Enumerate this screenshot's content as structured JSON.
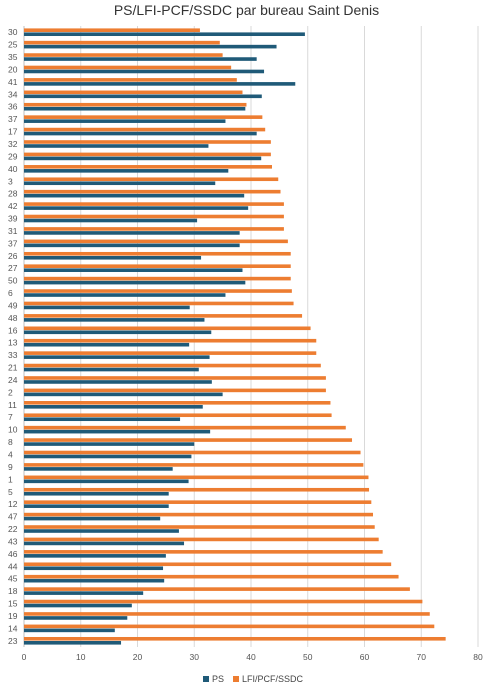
{
  "chart_data": {
    "type": "bar",
    "orientation": "horizontal",
    "title": "PS/LFI-PCF/SSDC par bureau Saint Denis",
    "xlabel": "",
    "ylabel": "",
    "xlim": [
      0,
      80
    ],
    "xticks": [
      0,
      10,
      20,
      30,
      40,
      50,
      60,
      70,
      80
    ],
    "grid": true,
    "legend_position": "bottom",
    "categories": [
      "30",
      "25",
      "35",
      "20",
      "41",
      "34",
      "36",
      "37",
      "17",
      "32",
      "29",
      "40",
      "3",
      "28",
      "42",
      "39",
      "31",
      "37",
      "26",
      "27",
      "50",
      "6",
      "49",
      "48",
      "16",
      "13",
      "33",
      "21",
      "24",
      "2",
      "11",
      "7",
      "10",
      "8",
      "4",
      "9",
      "1",
      "5",
      "12",
      "47",
      "22",
      "43",
      "46",
      "44",
      "45",
      "18",
      "15",
      "19",
      "14",
      "23"
    ],
    "series": [
      {
        "name": "PS",
        "color": "#1f5a78",
        "values": [
          49.5,
          44.5,
          41,
          42.3,
          47.8,
          41.9,
          39,
          35.5,
          41,
          32.5,
          41.8,
          36,
          33.7,
          38.8,
          39.5,
          30.5,
          38,
          38,
          31.2,
          38.5,
          39,
          35.5,
          29.2,
          31.8,
          33,
          29.1,
          32.7,
          30.8,
          33.1,
          35,
          31.5,
          27.5,
          32.8,
          30,
          29.5,
          26.2,
          29,
          25.5,
          25.5,
          24,
          27.3,
          28.2,
          25,
          24.5,
          24.7,
          21,
          19,
          18.2,
          16,
          17.1
        ]
      },
      {
        "name": "LFI/PCF/SSDC",
        "color": "#ed7d31",
        "values": [
          31,
          34.5,
          35,
          36.5,
          37.5,
          38.5,
          39.2,
          42,
          42.5,
          43.5,
          43.5,
          43.7,
          44.8,
          45.2,
          45.8,
          45.8,
          45.8,
          46.5,
          47,
          47,
          47,
          47.2,
          47.5,
          49,
          50.5,
          51.5,
          51.5,
          52.3,
          53.2,
          53.2,
          54,
          54.2,
          56.7,
          57.8,
          59.3,
          59.8,
          60.7,
          60.8,
          61.2,
          61.5,
          61.8,
          62.5,
          63.2,
          64.7,
          66,
          68,
          70.2,
          71.5,
          72.3,
          74.3
        ]
      }
    ]
  }
}
